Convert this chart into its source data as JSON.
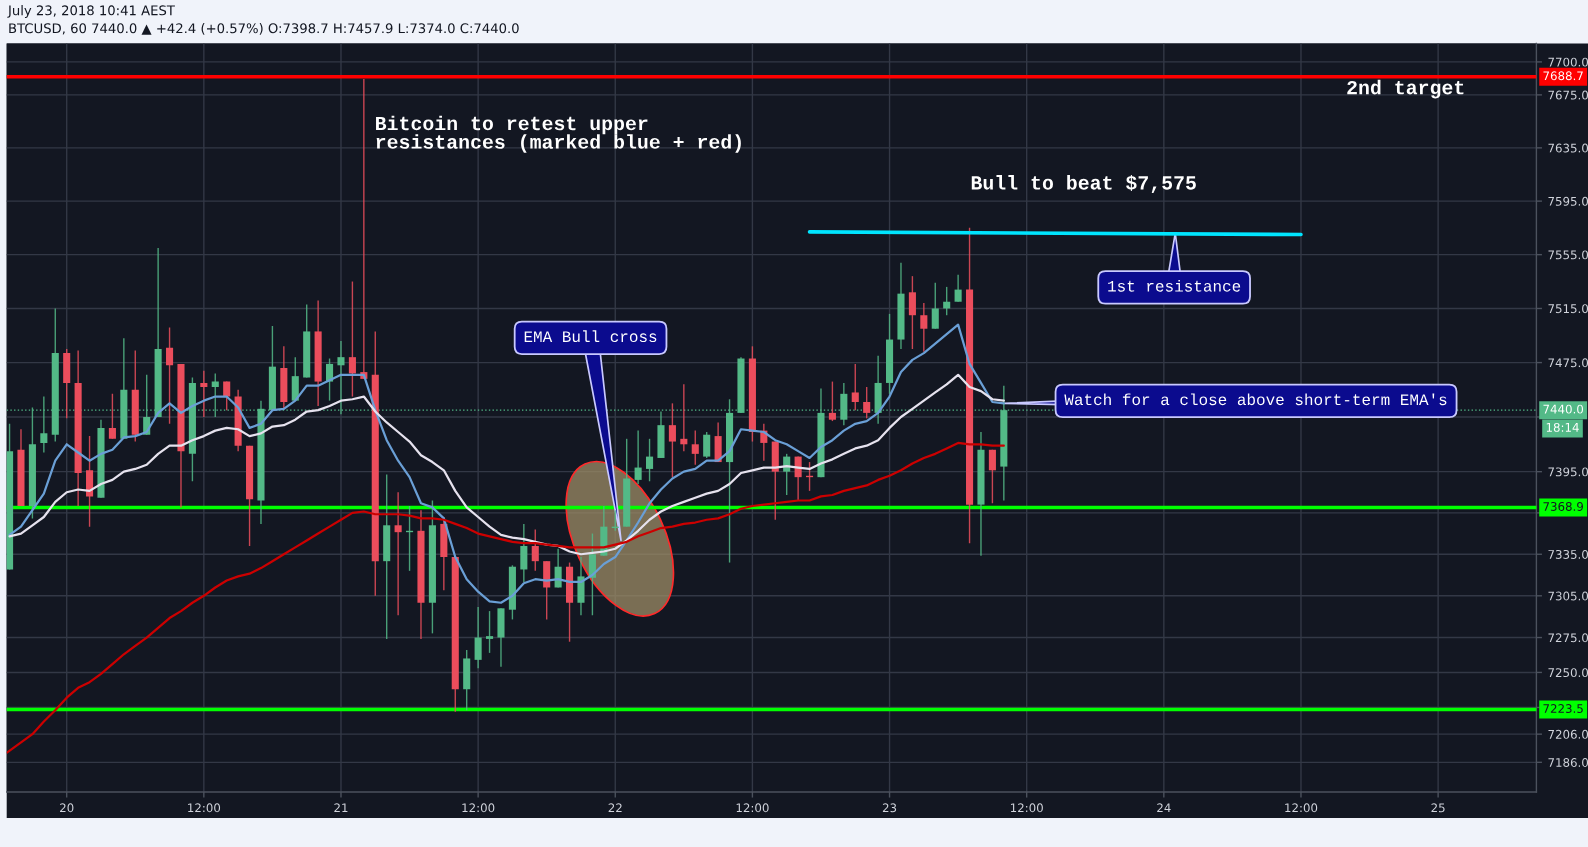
{
  "chart_data": {
    "type": "candlestick",
    "title": "July 23, 2018 10:41 AEST",
    "subtitle": "BTCUSD, 60 7440.0 ▲ +42.4 (+0.57%) O:7398.7 H:7457.9 L:7374.0 C:7440.0",
    "x": [
      "2018-07-19T19:00",
      "2018-07-19T20:00",
      "2018-07-19T21:00",
      "2018-07-19T22:00",
      "2018-07-19T23:00",
      "2018-07-20T00:00",
      "2018-07-20T01:00",
      "2018-07-20T02:00",
      "2018-07-20T03:00",
      "2018-07-20T04:00",
      "2018-07-20T05:00",
      "2018-07-20T06:00",
      "2018-07-20T07:00",
      "2018-07-20T08:00",
      "2018-07-20T09:00",
      "2018-07-20T10:00",
      "2018-07-20T11:00",
      "2018-07-20T12:00",
      "2018-07-20T13:00",
      "2018-07-20T14:00",
      "2018-07-20T15:00",
      "2018-07-20T16:00",
      "2018-07-20T17:00",
      "2018-07-20T18:00",
      "2018-07-20T19:00",
      "2018-07-20T20:00",
      "2018-07-20T21:00",
      "2018-07-20T22:00",
      "2018-07-20T23:00",
      "2018-07-21T00:00",
      "2018-07-21T01:00",
      "2018-07-21T02:00",
      "2018-07-21T03:00",
      "2018-07-21T04:00",
      "2018-07-21T05:00",
      "2018-07-21T06:00",
      "2018-07-21T07:00",
      "2018-07-21T08:00",
      "2018-07-21T09:00",
      "2018-07-21T10:00",
      "2018-07-21T11:00",
      "2018-07-21T12:00",
      "2018-07-21T13:00",
      "2018-07-21T14:00",
      "2018-07-21T15:00",
      "2018-07-21T16:00",
      "2018-07-21T17:00",
      "2018-07-21T18:00",
      "2018-07-21T19:00",
      "2018-07-21T20:00",
      "2018-07-21T21:00",
      "2018-07-21T22:00",
      "2018-07-21T23:00",
      "2018-07-22T00:00",
      "2018-07-22T01:00",
      "2018-07-22T02:00",
      "2018-07-22T03:00",
      "2018-07-22T04:00",
      "2018-07-22T05:00",
      "2018-07-22T06:00",
      "2018-07-22T07:00",
      "2018-07-22T08:00",
      "2018-07-22T09:00",
      "2018-07-22T10:00",
      "2018-07-22T11:00",
      "2018-07-22T12:00",
      "2018-07-22T13:00",
      "2018-07-22T14:00",
      "2018-07-22T15:00",
      "2018-07-22T16:00",
      "2018-07-22T17:00",
      "2018-07-22T18:00",
      "2018-07-22T19:00",
      "2018-07-22T20:00",
      "2018-07-22T21:00",
      "2018-07-22T22:00",
      "2018-07-22T23:00",
      "2018-07-23T00:00",
      "2018-07-23T01:00",
      "2018-07-23T02:00",
      "2018-07-23T03:00",
      "2018-07-23T04:00",
      "2018-07-23T05:00",
      "2018-07-23T06:00",
      "2018-07-23T07:00",
      "2018-07-23T08:00",
      "2018-07-23T09:00",
      "2018-07-23T10:00"
    ],
    "ohlc": [
      [
        7324,
        7430,
        7324,
        7410
      ],
      [
        7411,
        7426,
        7370,
        7370
      ],
      [
        7370,
        7442,
        7361,
        7415
      ],
      [
        7416,
        7450,
        7409,
        7423
      ],
      [
        7422,
        7515,
        7417,
        7482
      ],
      [
        7482,
        7485,
        7434,
        7460
      ],
      [
        7460,
        7484,
        7370,
        7394
      ],
      [
        7396,
        7421,
        7355,
        7377
      ],
      [
        7376,
        7433,
        7376,
        7427
      ],
      [
        7427,
        7452,
        7419,
        7419
      ],
      [
        7419,
        7493,
        7419,
        7455
      ],
      [
        7455,
        7484,
        7417,
        7422
      ],
      [
        7422,
        7466,
        7422,
        7435
      ],
      [
        7435,
        7560,
        7435,
        7485
      ],
      [
        7486,
        7501,
        7430,
        7473
      ],
      [
        7474,
        7474,
        7369,
        7410
      ],
      [
        7408,
        7464,
        7388,
        7460
      ],
      [
        7460,
        7469,
        7435,
        7457
      ],
      [
        7457,
        7467,
        7435,
        7461
      ],
      [
        7461,
        7461,
        7440,
        7450
      ],
      [
        7450,
        7455,
        7410,
        7414
      ],
      [
        7414,
        7414,
        7341,
        7375
      ],
      [
        7374,
        7447,
        7357,
        7441
      ],
      [
        7440,
        7502,
        7440,
        7472
      ],
      [
        7471,
        7487,
        7441,
        7446
      ],
      [
        7447,
        7479,
        7447,
        7465
      ],
      [
        7464,
        7518,
        7464,
        7498
      ],
      [
        7498,
        7521,
        7443,
        7461
      ],
      [
        7461,
        7478,
        7447,
        7474
      ],
      [
        7473,
        7491,
        7437,
        7479
      ],
      [
        7479,
        7535,
        7450,
        7467
      ],
      [
        7468,
        7687,
        7463,
        7463
      ],
      [
        7466,
        7498,
        7305,
        7330
      ],
      [
        7330,
        7393,
        7274,
        7356
      ],
      [
        7356,
        7380,
        7291,
        7351
      ],
      [
        7351,
        7370,
        7323,
        7352
      ],
      [
        7352,
        7367,
        7274,
        7300
      ],
      [
        7300,
        7374,
        7278,
        7356
      ],
      [
        7357,
        7362,
        7309,
        7333
      ],
      [
        7333,
        7333,
        7222,
        7238
      ],
      [
        7238,
        7266,
        7223,
        7260
      ],
      [
        7259,
        7297,
        7253,
        7275
      ],
      [
        7274,
        7294,
        7264,
        7276
      ],
      [
        7275,
        7296,
        7254,
        7296
      ],
      [
        7295,
        7327,
        7288,
        7326
      ],
      [
        7324,
        7357,
        7315,
        7341
      ],
      [
        7341,
        7353,
        7323,
        7330
      ],
      [
        7330,
        7330,
        7288,
        7311
      ],
      [
        7311,
        7339,
        7311,
        7326
      ],
      [
        7326,
        7329,
        7272,
        7300
      ],
      [
        7300,
        7333,
        7291,
        7319
      ],
      [
        7318,
        7350,
        7291,
        7335
      ],
      [
        7334,
        7370,
        7334,
        7355
      ],
      [
        7354,
        7367,
        7352,
        7355
      ],
      [
        7355,
        7419,
        7355,
        7390
      ],
      [
        7389,
        7425,
        7386,
        7398
      ],
      [
        7397,
        7419,
        7388,
        7406
      ],
      [
        7405,
        7439,
        7405,
        7429
      ],
      [
        7429,
        7445,
        7391,
        7417
      ],
      [
        7419,
        7459,
        7410,
        7415
      ],
      [
        7415,
        7425,
        7400,
        7408
      ],
      [
        7406,
        7424,
        7405,
        7422
      ],
      [
        7421,
        7431,
        7402,
        7402
      ],
      [
        7402,
        7448,
        7329,
        7438
      ],
      [
        7438,
        7479,
        7438,
        7478
      ],
      [
        7478,
        7487,
        7417,
        7424
      ],
      [
        7425,
        7430,
        7403,
        7416
      ],
      [
        7417,
        7417,
        7360,
        7395
      ],
      [
        7395,
        7408,
        7378,
        7406
      ],
      [
        7406,
        7406,
        7374,
        7391
      ],
      [
        7392,
        7402,
        7381,
        7391
      ],
      [
        7391,
        7456,
        7391,
        7438
      ],
      [
        7438,
        7461,
        7432,
        7433
      ],
      [
        7433,
        7460,
        7429,
        7452
      ],
      [
        7453,
        7474,
        7440,
        7446
      ],
      [
        7446,
        7457,
        7434,
        7438
      ],
      [
        7438,
        7480,
        7430,
        7460
      ],
      [
        7460,
        7511,
        7452,
        7492
      ],
      [
        7492,
        7549,
        7485,
        7526
      ],
      [
        7527,
        7539,
        7485,
        7510
      ],
      [
        7510,
        7519,
        7483,
        7500
      ],
      [
        7500,
        7534,
        7500,
        7515
      ],
      [
        7515,
        7531,
        7510,
        7520
      ],
      [
        7520,
        7540,
        7520,
        7529
      ],
      [
        7529,
        7575,
        7343,
        7371
      ],
      [
        7371,
        7424,
        7334,
        7411
      ],
      [
        7411,
        7411,
        7372,
        7396
      ],
      [
        7398.7,
        7457.9,
        7374.0,
        7440.0
      ]
    ],
    "colors": [
      "#53b987",
      "#eb4d5c",
      "#53b987",
      "#53b987",
      "#53b987",
      "#eb4d5c",
      "#eb4d5c",
      "#eb4d5c",
      "#53b987",
      "#eb4d5c",
      "#53b987",
      "#eb4d5c",
      "#53b987",
      "#53b987",
      "#eb4d5c",
      "#eb4d5c",
      "#53b987",
      "#eb4d5c",
      "#53b987",
      "#eb4d5c",
      "#eb4d5c",
      "#eb4d5c",
      "#53b987",
      "#53b987",
      "#eb4d5c",
      "#53b987",
      "#53b987",
      "#eb4d5c",
      "#53b987",
      "#53b987",
      "#eb4d5c",
      "#eb4d5c",
      "#eb4d5c",
      "#53b987",
      "#eb4d5c",
      "#53b987",
      "#eb4d5c",
      "#53b987",
      "#eb4d5c",
      "#eb4d5c",
      "#53b987",
      "#53b987",
      "#53b987",
      "#53b987",
      "#53b987",
      "#53b987",
      "#eb4d5c",
      "#eb4d5c",
      "#53b987",
      "#eb4d5c",
      "#53b987",
      "#53b987",
      "#53b987",
      "#53b987",
      "#53b987",
      "#53b987",
      "#53b987",
      "#53b987",
      "#eb4d5c",
      "#eb4d5c",
      "#eb4d5c",
      "#53b987",
      "#eb4d5c",
      "#53b987",
      "#53b987",
      "#eb4d5c",
      "#eb4d5c",
      "#eb4d5c",
      "#53b987",
      "#eb4d5c",
      "#eb4d5c",
      "#53b987",
      "#eb4d5c",
      "#53b987",
      "#eb4d5c",
      "#eb4d5c",
      "#53b987",
      "#53b987",
      "#53b987",
      "#eb4d5c",
      "#eb4d5c",
      "#53b987",
      "#53b987",
      "#53b987",
      "#eb4d5c",
      "#53b987",
      "#eb4d5c",
      "#53b987"
    ],
    "series": [
      {
        "type": "line",
        "color": "#6a9fd6",
        "values": [
          7349,
          7355,
          7367,
          7379,
          7403,
          7415,
          7409,
          7403,
          7408,
          7411,
          7420,
          7421,
          7424,
          7438,
          7445,
          7438,
          7443,
          7447,
          7450,
          7450,
          7442,
          7427,
          7430,
          7440,
          7441,
          7447,
          7458,
          7458,
          7462,
          7466,
          7466,
          7466,
          7440,
          7418,
          7403,
          7391,
          7372,
          7369,
          7361,
          7333,
          7317,
          7308,
          7301,
          7300,
          7305,
          7314,
          7317,
          7316,
          7317,
          7315,
          7315,
          7320,
          7328,
          7333,
          7345,
          7358,
          7372,
          7382,
          7390,
          7395,
          7397,
          7403,
          7403,
          7410,
          7426,
          7425,
          7424,
          7418,
          7415,
          7410,
          7405,
          7413,
          7418,
          7425,
          7430,
          7432,
          7438,
          7450,
          7468,
          7477,
          7482,
          7489,
          7496,
          7503,
          7474,
          7460,
          7446,
          7445
        ]
      },
      {
        "type": "line",
        "color": "#e6e2ee",
        "values": [
          7348,
          7350,
          7356,
          7362,
          7373,
          7380,
          7382,
          7381,
          7386,
          7389,
          7395,
          7397,
          7400,
          7408,
          7414,
          7414,
          7418,
          7421,
          7425,
          7427,
          7426,
          7421,
          7423,
          7428,
          7429,
          7433,
          7439,
          7440,
          7443,
          7447,
          7448,
          7450,
          7439,
          7431,
          7424,
          7417,
          7407,
          7402,
          7396,
          7381,
          7369,
          7362,
          7355,
          7349,
          7347,
          7346,
          7344,
          7342,
          7341,
          7337,
          7335,
          7336,
          7337,
          7339,
          7345,
          7352,
          7360,
          7366,
          7370,
          7373,
          7376,
          7379,
          7381,
          7386,
          7394,
          7396,
          7398,
          7398,
          7399,
          7398,
          7397,
          7401,
          7404,
          7408,
          7412,
          7414,
          7418,
          7427,
          7435,
          7441,
          7447,
          7453,
          7459,
          7466,
          7457,
          7454,
          7448,
          7447
        ]
      },
      {
        "type": "line",
        "color": "#cc0000",
        "x": [
          "2018-07-19T18:48",
          "2018-07-19T21:00",
          "2018-07-19T22:00",
          "2018-07-19T23:00",
          "2018-07-20T00:00",
          "2018-07-20T01:00",
          "2018-07-20T02:00",
          "2018-07-20T03:00",
          "2018-07-20T04:00",
          "2018-07-20T05:00",
          "2018-07-20T06:00",
          "2018-07-20T07:00",
          "2018-07-20T08:00",
          "2018-07-20T09:00",
          "2018-07-20T10:00",
          "2018-07-20T11:00",
          "2018-07-20T12:00",
          "2018-07-20T13:00",
          "2018-07-20T14:00",
          "2018-07-20T15:00",
          "2018-07-20T16:00",
          "2018-07-20T17:00",
          "2018-07-20T18:00",
          "2018-07-20T19:00",
          "2018-07-20T20:00",
          "2018-07-20T21:00",
          "2018-07-20T22:00",
          "2018-07-20T23:00",
          "2018-07-21T00:00",
          "2018-07-21T01:00",
          "2018-07-21T02:00",
          "2018-07-21T03:00",
          "2018-07-21T04:00",
          "2018-07-21T05:00",
          "2018-07-21T06:00",
          "2018-07-21T07:00",
          "2018-07-21T08:00",
          "2018-07-21T09:00",
          "2018-07-21T10:00",
          "2018-07-21T11:00",
          "2018-07-21T12:00",
          "2018-07-21T13:00",
          "2018-07-21T14:00",
          "2018-07-21T15:00",
          "2018-07-21T16:00",
          "2018-07-21T17:00",
          "2018-07-21T18:00",
          "2018-07-21T19:00",
          "2018-07-21T20:00",
          "2018-07-21T21:00",
          "2018-07-21T22:00",
          "2018-07-21T23:00",
          "2018-07-22T00:00",
          "2018-07-22T01:00",
          "2018-07-22T02:00",
          "2018-07-22T03:00",
          "2018-07-22T04:00",
          "2018-07-22T05:00",
          "2018-07-22T06:00",
          "2018-07-22T07:00",
          "2018-07-22T08:00",
          "2018-07-22T09:00",
          "2018-07-22T10:00",
          "2018-07-22T11:00",
          "2018-07-22T12:00",
          "2018-07-22T13:00",
          "2018-07-22T14:00",
          "2018-07-22T15:00",
          "2018-07-22T16:00",
          "2018-07-22T17:00",
          "2018-07-22T18:00",
          "2018-07-22T19:00",
          "2018-07-22T20:00",
          "2018-07-22T21:00",
          "2018-07-22T22:00",
          "2018-07-22T23:00",
          "2018-07-23T00:00",
          "2018-07-23T01:00",
          "2018-07-23T02:00",
          "2018-07-23T03:00",
          "2018-07-23T04:00",
          "2018-07-23T05:00",
          "2018-07-23T06:00",
          "2018-07-23T07:00",
          "2018-07-23T08:00",
          "2018-07-23T09:00",
          "2018-07-23T10:00"
        ],
        "values": [
          7193,
          7206,
          7215,
          7223,
          7232,
          7239,
          7243,
          7249,
          7256,
          7263,
          7269,
          7275,
          7282,
          7289,
          7294,
          7300,
          7305,
          7311,
          7316,
          7319,
          7321,
          7325,
          7330,
          7335,
          7340,
          7345,
          7350,
          7355,
          7360,
          7365,
          7366,
          7364,
          7364,
          7364,
          7363,
          7361,
          7361,
          7360,
          7357,
          7354,
          7350,
          7348,
          7346,
          7344,
          7343,
          7343,
          7342,
          7341,
          7340,
          7340,
          7340,
          7340,
          7342,
          7344,
          7348,
          7351,
          7354,
          7355,
          7357,
          7358,
          7360,
          7361,
          7364,
          7368,
          7370,
          7371,
          7372,
          7373,
          7374,
          7374,
          7377,
          7378,
          7381,
          7383,
          7385,
          7389,
          7392,
          7396,
          7401,
          7405,
          7408,
          7412,
          7416,
          7415,
          7415,
          7414,
          7414
        ]
      },
      {
        "type": "line",
        "color": "#00e5ff",
        "x": [
          "2018-07-22T17:00",
          "2018-07-24T12:00"
        ],
        "values": [
          7572,
          7570
        ]
      }
    ],
    "xlim": [
      "2018-07-19T18:45",
      "2018-07-25T08:36"
    ],
    "xticks": [
      {
        "value": "2018-07-20T00:00",
        "label": "20"
      },
      {
        "value": "2018-07-20T12:00",
        "label": "12:00"
      },
      {
        "value": "2018-07-21T00:00",
        "label": "21"
      },
      {
        "value": "2018-07-21T12:00",
        "label": "12:00"
      },
      {
        "value": "2018-07-22T00:00",
        "label": "22"
      },
      {
        "value": "2018-07-22T12:00",
        "label": "12:00"
      },
      {
        "value": "2018-07-23T00:00",
        "label": "23"
      },
      {
        "value": "2018-07-23T12:00",
        "label": "12:00"
      },
      {
        "value": "2018-07-24T00:00",
        "label": "24"
      },
      {
        "value": "2018-07-24T12:00",
        "label": "12:00"
      },
      {
        "value": "2018-07-25T00:00",
        "label": "25"
      }
    ],
    "ylim": [
      7165,
      7714
    ],
    "yticks": [
      {
        "value": 7700,
        "label": "7700.0"
      },
      {
        "value": 7675,
        "label": "7675.0"
      },
      {
        "value": 7635,
        "label": "7635.0"
      },
      {
        "value": 7595,
        "label": "7595.0"
      },
      {
        "value": 7555,
        "label": "7555.0"
      },
      {
        "value": 7515,
        "label": "7515.0"
      },
      {
        "value": 7475,
        "label": "7475.0"
      },
      {
        "value": 7435,
        "label": null
      },
      {
        "value": 7395,
        "label": "7395.0"
      },
      {
        "value": 7365,
        "label": null
      },
      {
        "value": 7335,
        "label": "7335.0"
      },
      {
        "value": 7305,
        "label": "7305.0"
      },
      {
        "value": 7275,
        "label": "7275.0"
      },
      {
        "value": 7250,
        "label": "7250.0"
      },
      {
        "value": 7225,
        "label": null
      },
      {
        "value": 7206,
        "label": "7206.0"
      },
      {
        "value": 7186,
        "label": "7186.0"
      }
    ],
    "log": true,
    "grid": true,
    "ref_lines": [
      {
        "axis": "y",
        "value": 7688.7,
        "label": "7688.7",
        "color": "#ff0000",
        "line_style": "solid"
      },
      {
        "axis": "y",
        "value": 7440.0,
        "label": "7440.0",
        "color": "#53b987",
        "line_style": "dotted"
      },
      {
        "axis": "y",
        "value": 7368.9,
        "label": "7368.9",
        "color": "#00ff00",
        "line_style": "solid"
      },
      {
        "axis": "y",
        "value": 7223.5,
        "label": "7223.5",
        "color": "#00ff00",
        "line_style": "solid"
      }
    ],
    "annotations": [
      "Bitcoin to retest upper\nresistances (marked blue + red)",
      "Bull to beat $7,575",
      "2nd target",
      {
        "text": "EMA Bull cross",
        "x": "2018-07-22T00:30",
        "y": 7345
      },
      {
        "text": "1st resistance",
        "x": "2018-07-24T01:00",
        "y": 7571
      },
      {
        "text": "Watch for a close above short-term EMA's",
        "x": "2018-07-23T10:00",
        "y": 7445
      },
      "18:14"
    ]
  }
}
